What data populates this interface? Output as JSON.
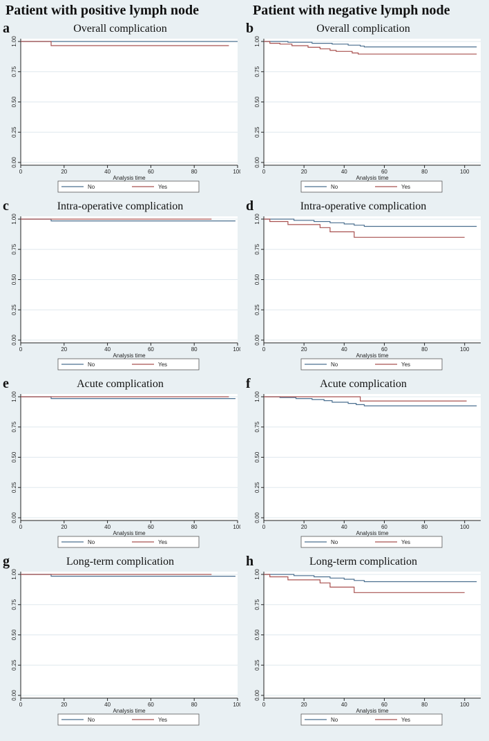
{
  "headings": {
    "left": "Patient with positive lymph node",
    "right": "Patient with negative lymph node"
  },
  "chart_data": [
    {
      "type": "line",
      "letter": "a",
      "title": "Overall complication",
      "xlabel": "Analysis time",
      "ylabel": "",
      "xlim": [
        0,
        100
      ],
      "ylim": [
        0,
        1
      ],
      "xticks": [
        "0",
        "20",
        "40",
        "60",
        "80",
        "100"
      ],
      "yticks": [
        "0.00",
        "0.25",
        "0.50",
        "0.75",
        "1.00"
      ],
      "legend": [
        "No",
        "Yes"
      ],
      "series": [
        {
          "name": "No",
          "color": "#4a6f8f",
          "steps": [
            [
              0,
              1.0
            ],
            [
              100,
              1.0
            ]
          ]
        },
        {
          "name": "Yes",
          "color": "#a8504f",
          "steps": [
            [
              0,
              1.0
            ],
            [
              14,
              0.966
            ],
            [
              96,
              0.966
            ]
          ]
        }
      ]
    },
    {
      "type": "line",
      "letter": "b",
      "title": "Overall complication",
      "xlabel": "Analysis time",
      "ylabel": "",
      "xlim": [
        0,
        108
      ],
      "ylim": [
        0,
        1
      ],
      "xticks": [
        "0",
        "20",
        "40",
        "60",
        "80",
        "100"
      ],
      "yticks": [
        "0.00",
        "0.25",
        "0.50",
        "0.75",
        "1.00"
      ],
      "legend": [
        "No",
        "Yes"
      ],
      "series": [
        {
          "name": "No",
          "color": "#4a6f8f",
          "steps": [
            [
              0,
              1.0
            ],
            [
              12,
              0.993
            ],
            [
              24,
              0.985
            ],
            [
              34,
              0.978
            ],
            [
              42,
              0.97
            ],
            [
              48,
              0.962
            ],
            [
              50,
              0.955
            ],
            [
              106,
              0.955
            ]
          ]
        },
        {
          "name": "Yes",
          "color": "#a8504f",
          "steps": [
            [
              0,
              1.0
            ],
            [
              3,
              0.985
            ],
            [
              8,
              0.978
            ],
            [
              14,
              0.965
            ],
            [
              22,
              0.952
            ],
            [
              28,
              0.939
            ],
            [
              33,
              0.926
            ],
            [
              36,
              0.918
            ],
            [
              44,
              0.905
            ],
            [
              47,
              0.896
            ],
            [
              106,
              0.896
            ]
          ]
        }
      ]
    },
    {
      "type": "line",
      "letter": "c",
      "title": "Intra-operative complication",
      "xlabel": "Analysis time",
      "ylabel": "",
      "xlim": [
        0,
        100
      ],
      "ylim": [
        0,
        1
      ],
      "xticks": [
        "0",
        "20",
        "40",
        "60",
        "80",
        "100"
      ],
      "yticks": [
        "0.00",
        "0.25",
        "0.50",
        "0.75",
        "1.00"
      ],
      "legend": [
        "No",
        "Yes"
      ],
      "series": [
        {
          "name": "No",
          "color": "#4a6f8f",
          "steps": [
            [
              0,
              1.0
            ],
            [
              14,
              0.985
            ],
            [
              99,
              0.985
            ]
          ]
        },
        {
          "name": "Yes",
          "color": "#a8504f",
          "steps": [
            [
              0,
              1.0
            ],
            [
              88,
              1.0
            ]
          ]
        }
      ]
    },
    {
      "type": "line",
      "letter": "d",
      "title": "Intra-operative complication",
      "xlabel": "Analysis time",
      "ylabel": "",
      "xlim": [
        0,
        108
      ],
      "ylim": [
        0,
        1
      ],
      "xticks": [
        "0",
        "20",
        "40",
        "60",
        "80",
        "100"
      ],
      "yticks": [
        "0.00",
        "0.25",
        "0.50",
        "0.75",
        "1.00"
      ],
      "legend": [
        "No",
        "Yes"
      ],
      "series": [
        {
          "name": "No",
          "color": "#4a6f8f",
          "steps": [
            [
              0,
              1.0
            ],
            [
              15,
              0.99
            ],
            [
              25,
              0.98
            ],
            [
              33,
              0.97
            ],
            [
              40,
              0.96
            ],
            [
              45,
              0.95
            ],
            [
              50,
              0.94
            ],
            [
              106,
              0.94
            ]
          ]
        },
        {
          "name": "Yes",
          "color": "#a8504f",
          "steps": [
            [
              0,
              1.0
            ],
            [
              3,
              0.98
            ],
            [
              12,
              0.955
            ],
            [
              28,
              0.93
            ],
            [
              33,
              0.895
            ],
            [
              45,
              0.85
            ],
            [
              100,
              0.85
            ]
          ]
        }
      ]
    },
    {
      "type": "line",
      "letter": "e",
      "title": "Acute complication",
      "xlabel": "Analysis time",
      "ylabel": "",
      "xlim": [
        0,
        100
      ],
      "ylim": [
        0,
        1
      ],
      "xticks": [
        "0",
        "20",
        "40",
        "60",
        "80",
        "100"
      ],
      "yticks": [
        "0.00",
        "0.25",
        "0.50",
        "0.75",
        "1.00"
      ],
      "legend": [
        "No",
        "Yes"
      ],
      "series": [
        {
          "name": "No",
          "color": "#4a6f8f",
          "steps": [
            [
              0,
              1.0
            ],
            [
              14,
              0.985
            ],
            [
              99,
              0.985
            ]
          ]
        },
        {
          "name": "Yes",
          "color": "#a8504f",
          "steps": [
            [
              0,
              1.0
            ],
            [
              96,
              1.0
            ]
          ]
        }
      ]
    },
    {
      "type": "line",
      "letter": "f",
      "title": "Acute complication",
      "xlabel": "Analysis time",
      "ylabel": "",
      "xlim": [
        0,
        108
      ],
      "ylim": [
        0,
        1
      ],
      "xticks": [
        "0",
        "20",
        "40",
        "60",
        "80",
        "100"
      ],
      "yticks": [
        "0.00",
        "0.25",
        "0.50",
        "0.75",
        "1.00"
      ],
      "legend": [
        "No",
        "Yes"
      ],
      "series": [
        {
          "name": "No",
          "color": "#4a6f8f",
          "steps": [
            [
              0,
              1.0
            ],
            [
              8,
              0.993
            ],
            [
              16,
              0.985
            ],
            [
              24,
              0.977
            ],
            [
              30,
              0.968
            ],
            [
              34,
              0.955
            ],
            [
              42,
              0.945
            ],
            [
              46,
              0.935
            ],
            [
              50,
              0.925
            ],
            [
              106,
              0.925
            ]
          ]
        },
        {
          "name": "Yes",
          "color": "#a8504f",
          "steps": [
            [
              0,
              1.0
            ],
            [
              48,
              1.0
            ],
            [
              48,
              0.965
            ],
            [
              101,
              0.965
            ]
          ]
        }
      ]
    },
    {
      "type": "line",
      "letter": "g",
      "title": "Long-term complication",
      "xlabel": "Analysis time",
      "ylabel": "",
      "xlim": [
        0,
        100
      ],
      "ylim": [
        0,
        1
      ],
      "xticks": [
        "0",
        "20",
        "40",
        "60",
        "80",
        "100"
      ],
      "yticks": [
        "0.00",
        "0.25",
        "0.50",
        "0.75",
        "1.00"
      ],
      "legend": [
        "No",
        "Yes"
      ],
      "series": [
        {
          "name": "No",
          "color": "#4a6f8f",
          "steps": [
            [
              0,
              1.0
            ],
            [
              14,
              0.985
            ],
            [
              99,
              0.985
            ]
          ]
        },
        {
          "name": "Yes",
          "color": "#a8504f",
          "steps": [
            [
              0,
              1.0
            ],
            [
              88,
              1.0
            ]
          ]
        }
      ]
    },
    {
      "type": "line",
      "letter": "h",
      "title": "Long-term complication",
      "xlabel": "Analysis time",
      "ylabel": "",
      "xlim": [
        0,
        108
      ],
      "ylim": [
        0,
        1
      ],
      "xticks": [
        "0",
        "20",
        "40",
        "60",
        "80",
        "100"
      ],
      "yticks": [
        "0.00",
        "0.25",
        "0.50",
        "0.75",
        "1.00"
      ],
      "legend": [
        "No",
        "Yes"
      ],
      "series": [
        {
          "name": "No",
          "color": "#4a6f8f",
          "steps": [
            [
              0,
              1.0
            ],
            [
              15,
              0.99
            ],
            [
              25,
              0.98
            ],
            [
              33,
              0.97
            ],
            [
              40,
              0.96
            ],
            [
              45,
              0.95
            ],
            [
              50,
              0.94
            ],
            [
              106,
              0.94
            ]
          ]
        },
        {
          "name": "Yes",
          "color": "#a8504f",
          "steps": [
            [
              0,
              1.0
            ],
            [
              3,
              0.98
            ],
            [
              12,
              0.955
            ],
            [
              28,
              0.93
            ],
            [
              33,
              0.895
            ],
            [
              45,
              0.85
            ],
            [
              100,
              0.85
            ]
          ]
        }
      ]
    }
  ]
}
